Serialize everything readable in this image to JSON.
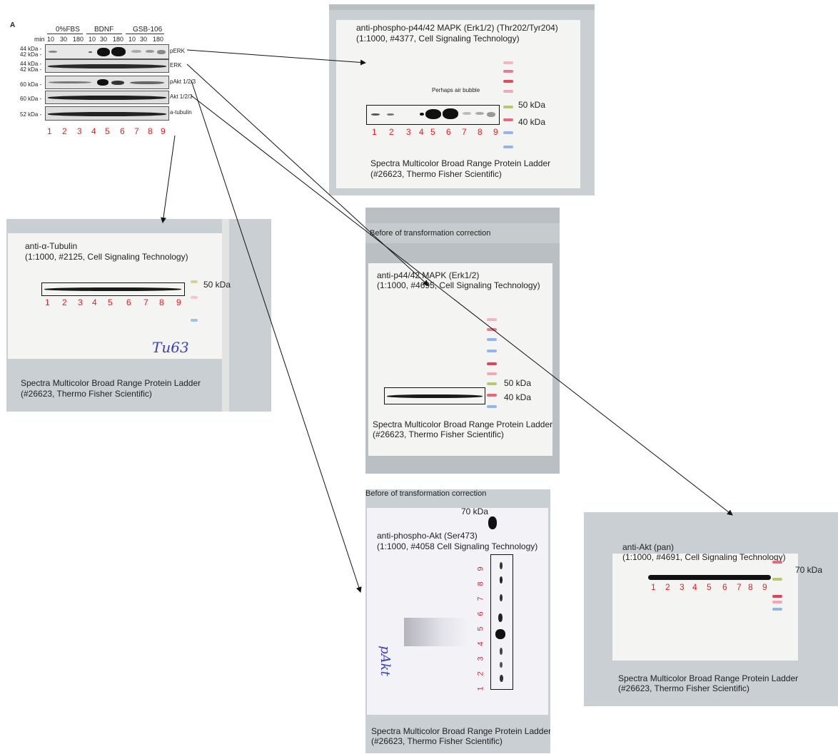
{
  "summary": {
    "panel_letter": "A",
    "groups": [
      "0%FBS",
      "BDNF",
      "GSB-106"
    ],
    "min_label": "min",
    "times": [
      "10",
      "30",
      "180",
      "10",
      "30",
      "180",
      "10",
      "30",
      "180"
    ],
    "markers": [
      "44 kDa -",
      "42 kDa -",
      "44 kDa -",
      "42 kDa -",
      "60 kDa -",
      "60 kDa -",
      "52 kDa -"
    ],
    "row_labels": [
      "pERK",
      "ERK",
      "pAkt 1/2/3",
      "Akt 1/2/3",
      "a-tubulin"
    ],
    "lanes": [
      "1",
      "2",
      "3",
      "4",
      "5",
      "6",
      "7",
      "8",
      "9"
    ]
  },
  "perk_scan": {
    "title1": "anti-phospho-p44/42 MAPK (Erk1/2) (Thr202/Tyr204)",
    "title2": "(1:1000, #4377, Cell Signaling Technology)",
    "note": "Perhaps air bubble",
    "kda1": "50 kDa",
    "kda2": "40 kDa",
    "lanes": [
      "1",
      "2",
      "3",
      "4",
      "5",
      "6",
      "7",
      "8",
      "9"
    ],
    "ladder1": "Spectra Multicolor Broad Range Protein Ladder",
    "ladder2": "(#26623, Thermo Fisher Scientific)"
  },
  "tubulin_scan": {
    "title1": "anti-α-Tubulin",
    "title2": "(1:1000, #2125, Cell Signaling Technology)",
    "kda": "50 kDa",
    "lanes": [
      "1",
      "2",
      "3",
      "4",
      "5",
      "6",
      "7",
      "8",
      "9"
    ],
    "handwriting": "Tu63",
    "ladder1": "Spectra Multicolor Broad Range Protein Ladder",
    "ladder2": "(#26623, Thermo Fisher Scientific)"
  },
  "erk_scan": {
    "header": "Before of transformation correction",
    "title1": "anti-p44/42 MAPK (Erk1/2)",
    "title2": "(1:1000, #4695, Cell Signaling Technology)",
    "kda1": "50 kDa",
    "kda2": "40 kDa",
    "ladder1": "Spectra Multicolor Broad Range Protein Ladder",
    "ladder2": "(#26623, Thermo Fisher Scientific)"
  },
  "pakt_scan": {
    "header": "Before of transformation correction",
    "kda": "70 kDa",
    "title1": "anti-phospho-Akt (Ser473)",
    "title2": "(1:1000, #4058 Cell Signaling Technology)",
    "lanes": [
      "9",
      "8",
      "7",
      "6",
      "5",
      "4",
      "3",
      "2",
      "1"
    ],
    "handwriting": "pAkt",
    "ladder1": "Spectra Multicolor Broad Range Protein Ladder",
    "ladder2": "(#26623, Thermo Fisher Scientific)"
  },
  "akt_scan": {
    "title1": "anti-Akt (pan)",
    "title2": "(1:1000, #4691, Cell Signaling Technology)",
    "kda": "70 kDa",
    "lanes": [
      "1",
      "2",
      "3",
      "4",
      "5",
      "6",
      "7",
      "8",
      "9"
    ],
    "ladder1": "Spectra Multicolor Broad Range Protein Ladder",
    "ladder2": "(#26623, Thermo Fisher Scientific)"
  },
  "colors": {
    "lane_number": "#e8202a",
    "scan_frame": "#c9cfd2",
    "membrane": "#f4f4f2",
    "band": "#111111",
    "handwriting": "#3b3fc4"
  }
}
